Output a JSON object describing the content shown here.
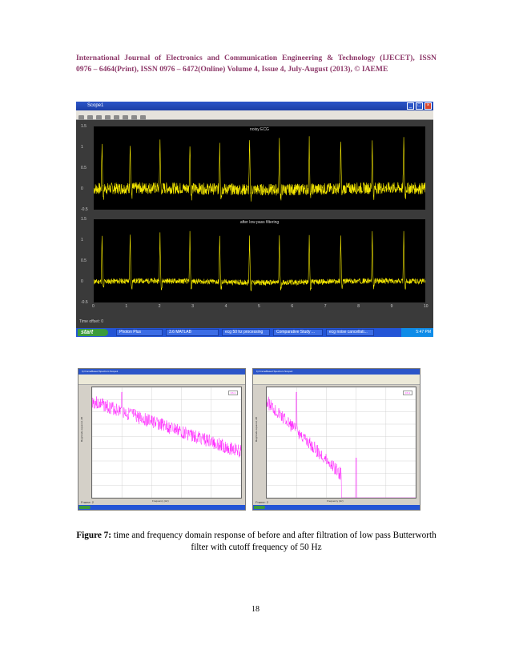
{
  "header": {
    "line1": "International Journal of Electronics and Communication Engineering & Technology (IJECET), ISSN",
    "line2": "0976 – 6464(Print), ISSN 0976 – 6472(Online) Volume 4, Issue 4, July-August (2013), © IAEME"
  },
  "scope_window": {
    "title": "Scope1",
    "top_plot_title": "noisy ECG",
    "bottom_plot_title": "after low pass filtering",
    "y_ticks": [
      "1.5",
      "1",
      "0.5",
      "0",
      "-0.5"
    ],
    "x_ticks": [
      "0",
      "1",
      "2",
      "3",
      "4",
      "5",
      "6",
      "7",
      "8",
      "9",
      "10"
    ],
    "time_offset": "Time offset: 0",
    "trace_color": "#f5e800"
  },
  "taskbar": {
    "start": "start",
    "items": [
      "Photon Plus",
      "3.6 MATLAB",
      "ecg 50 hz processing",
      "Comparative Study ...",
      "ecg noise cancellati..."
    ],
    "clock": "5:47 PM"
  },
  "spectrum_windows": {
    "left_title": "b) FrameBased Spectrum Scope1",
    "right_title": "b) FrameBased Spectrum Scope2",
    "x_label": "Frequency (Hz)",
    "y_label": "Magnitude-squared, dB",
    "x_ticks": [
      "0",
      "50",
      "100",
      "150",
      "200",
      "250"
    ],
    "y_ticks": [
      "20",
      "0",
      "-20",
      "-40",
      "-60",
      "-80",
      "-100",
      "-120",
      "-140",
      "-160"
    ],
    "legend": "Ch 1",
    "status": "Frame: 2",
    "trace_color": "#ff00ff"
  },
  "caption": {
    "label": "Figure 7:",
    "text": " time and frequency domain response of before and after filtration of low pass Butterworth filter with cutoff frequency of 50 Hz"
  },
  "page_number": "18"
}
